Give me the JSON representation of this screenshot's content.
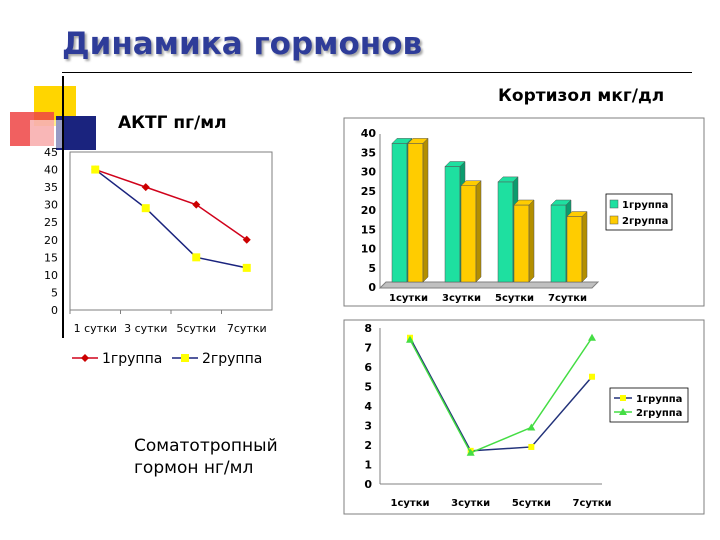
{
  "slide": {
    "title": "Динамика гормонов",
    "acth_caption": "АКТГ пг/мл",
    "cortisol_caption": "Кортизол мкг/дл",
    "somatotropin_caption_line1": "Соматотропный",
    "somatotropin_caption_line2": "гормон нг/мл"
  },
  "colors": {
    "title": "#2e3c99",
    "deco_yellow": "#ffd500",
    "deco_red": "#ee4444",
    "deco_navy": "#1a237e",
    "group1_line": "#d0021b",
    "group1_marker": "#cc0000",
    "group2_line": "#1a237e",
    "group2_marker": "#ffff00",
    "bar_green": "#1ee0a0",
    "bar_yellow": "#ffcc00",
    "chart3_group1": "#22327a",
    "chart3_group2": "#44dd44"
  },
  "chart_data": [
    {
      "id": "acth",
      "type": "line",
      "categories": [
        "1 сутки",
        "3 сутки",
        "5сутки",
        "7сутки"
      ],
      "series": [
        {
          "name": "1группа",
          "values": [
            40,
            35,
            30,
            20
          ]
        },
        {
          "name": "2группа",
          "values": [
            40,
            29,
            15,
            12
          ]
        }
      ],
      "ylim": [
        0,
        45
      ],
      "yticks": [
        "0",
        "5",
        "10",
        "15",
        "20",
        "25",
        "30",
        "35",
        "40",
        "45"
      ],
      "legend": "bottom",
      "grid": false
    },
    {
      "id": "cortisol",
      "type": "bar",
      "categories": [
        "1сутки",
        "3сутки",
        "5сутки",
        "7сутки"
      ],
      "series": [
        {
          "name": "1группа",
          "values": [
            36,
            30,
            26,
            20
          ]
        },
        {
          "name": "2группа",
          "values": [
            36,
            25,
            20,
            17
          ]
        }
      ],
      "ylim": [
        0,
        40
      ],
      "yticks": [
        "0",
        "5",
        "10",
        "15",
        "20",
        "25",
        "30",
        "35",
        "40"
      ],
      "legend": "right",
      "grid": false
    },
    {
      "id": "somatotropin",
      "type": "line",
      "categories": [
        "1сутки",
        "3сутки",
        "5сутки",
        "7сутки"
      ],
      "series": [
        {
          "name": "1группа",
          "values": [
            7.5,
            1.7,
            1.9,
            5.5
          ]
        },
        {
          "name": "2группа",
          "values": [
            7.4,
            1.6,
            2.9,
            7.5
          ]
        }
      ],
      "ylim": [
        0,
        8
      ],
      "yticks": [
        "0",
        "1",
        "2",
        "3",
        "4",
        "5",
        "6",
        "7",
        "8"
      ],
      "legend": "right",
      "grid": false
    }
  ]
}
